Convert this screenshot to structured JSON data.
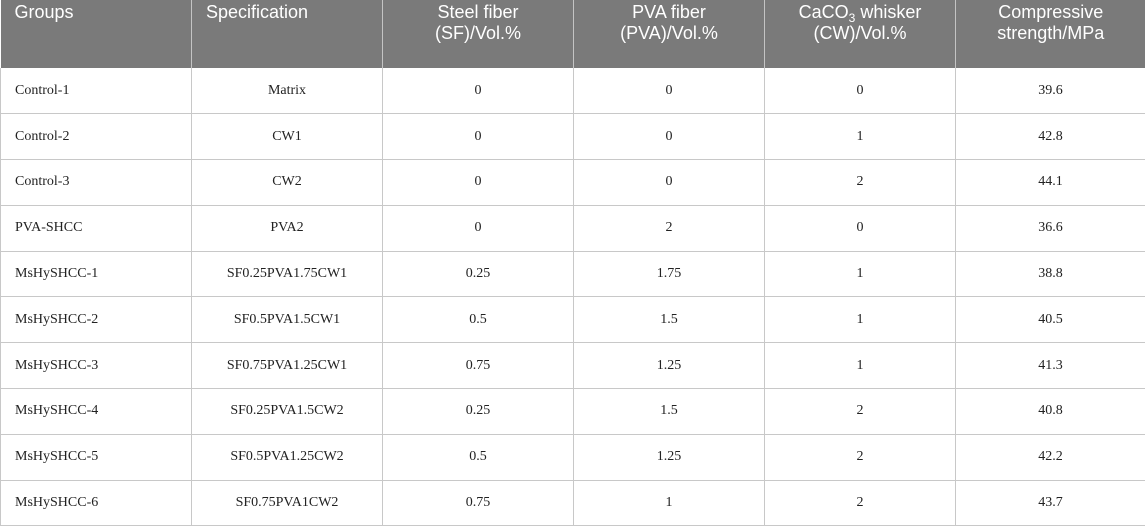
{
  "table": {
    "headers": [
      {
        "line1": "Groups",
        "line2": ""
      },
      {
        "line1": "Specification",
        "line2": ""
      },
      {
        "line1": "Steel fiber",
        "line2": "(SF)/Vol.%"
      },
      {
        "line1": "PVA fiber",
        "line2": "(PVA)/Vol.%"
      },
      {
        "line1_pre": "CaCO",
        "line1_sub": "3",
        "line1_post": " whisker",
        "line2": "(CW)/Vol.%"
      },
      {
        "line1": "Compressive",
        "line2": "strength/MPa"
      }
    ],
    "rows": [
      {
        "group": "Control-1",
        "spec": "Matrix",
        "sf": "0",
        "pva": "0",
        "cw": "0",
        "strength": "39.6"
      },
      {
        "group": "Control-2",
        "spec": "CW1",
        "sf": "0",
        "pva": "0",
        "cw": "1",
        "strength": "42.8"
      },
      {
        "group": "Control-3",
        "spec": "CW2",
        "sf": "0",
        "pva": "0",
        "cw": "2",
        "strength": "44.1"
      },
      {
        "group": "PVA-SHCC",
        "spec": "PVA2",
        "sf": "0",
        "pva": "2",
        "cw": "0",
        "strength": "36.6"
      },
      {
        "group": "MsHySHCC-1",
        "spec": "SF0.25PVA1.75CW1",
        "sf": "0.25",
        "pva": "1.75",
        "cw": "1",
        "strength": "38.8"
      },
      {
        "group": "MsHySHCC-2",
        "spec": "SF0.5PVA1.5CW1",
        "sf": "0.5",
        "pva": "1.5",
        "cw": "1",
        "strength": "40.5"
      },
      {
        "group": "MsHySHCC-3",
        "spec": "SF0.75PVA1.25CW1",
        "sf": "0.75",
        "pva": "1.25",
        "cw": "1",
        "strength": "41.3"
      },
      {
        "group": "MsHySHCC-4",
        "spec": "SF0.25PVA1.5CW2",
        "sf": "0.25",
        "pva": "1.5",
        "cw": "2",
        "strength": "40.8"
      },
      {
        "group": "MsHySHCC-5",
        "spec": "SF0.5PVA1.25CW2",
        "sf": "0.5",
        "pva": "1.25",
        "cw": "2",
        "strength": "42.2"
      },
      {
        "group": "MsHySHCC-6",
        "spec": "SF0.75PVA1CW2",
        "sf": "0.75",
        "pva": "1",
        "cw": "2",
        "strength": "43.7"
      }
    ]
  }
}
